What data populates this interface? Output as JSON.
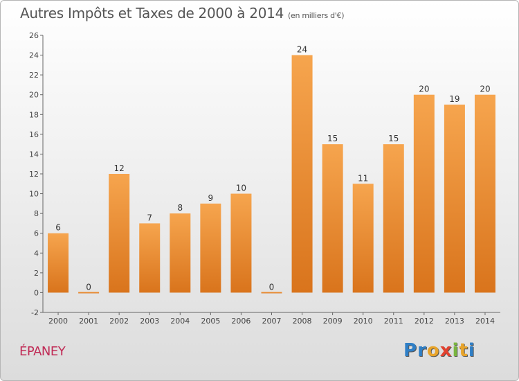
{
  "header": {
    "title": "Autres Impôts et Taxes de 2000 à 2014",
    "subtitle": "(en milliers d'€)"
  },
  "footer": {
    "commune": "ÉPANEY",
    "logo_letters": [
      "P",
      "r",
      "o",
      "x",
      "i",
      "t",
      "i"
    ],
    "logo_colors": [
      "#2f7fc6",
      "#2f7fc6",
      "#e8a42a",
      "#e2412f",
      "#7ab640",
      "#e8a42a",
      "#2f7fc6"
    ]
  },
  "chart_data": {
    "type": "bar",
    "categories": [
      "2000",
      "2001",
      "2002",
      "2003",
      "2004",
      "2005",
      "2006",
      "2007",
      "2008",
      "2009",
      "2010",
      "2011",
      "2012",
      "2013",
      "2014"
    ],
    "values": [
      6,
      0,
      12,
      7,
      8,
      9,
      10,
      0,
      24,
      15,
      11,
      15,
      20,
      19,
      20
    ],
    "data_labels": [
      "6",
      "0",
      "12",
      "7",
      "8",
      "9",
      "10",
      "0",
      "24",
      "15",
      "11",
      "15",
      "20",
      "19",
      "20"
    ],
    "y_ticks": [
      -2,
      0,
      2,
      4,
      6,
      8,
      10,
      12,
      14,
      16,
      18,
      20,
      22,
      24,
      26
    ],
    "ylim": [
      -2,
      26
    ],
    "grid": false,
    "bar_color_top": "#f6a54e",
    "bar_color_bottom": "#d9741c"
  }
}
